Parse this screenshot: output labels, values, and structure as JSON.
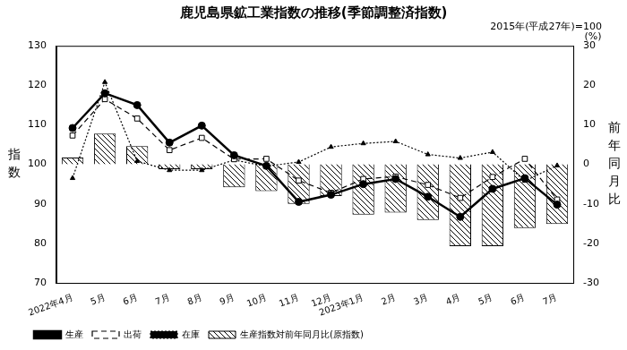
{
  "chart_data": {
    "type": "bar",
    "title": "鹿児島県鉱工業指数の推移(季節調整済指数)",
    "subtitle": "2015年(平成27年)=100",
    "ylabel": "指数",
    "y2label": "前年同月比",
    "annotations": [
      "(%)"
    ],
    "categories": [
      "2022年4月",
      "5月",
      "6月",
      "7月",
      "8月",
      "9月",
      "10月",
      "11月",
      "12月",
      "2023年1月",
      "2月",
      "3月",
      "4月",
      "5月",
      "6月",
      "7月"
    ],
    "series": [
      {
        "name": "生産指数対前年同月比(原指数)",
        "type": "bar",
        "axis": "y2",
        "color": "#000000",
        "values": [
          1.7,
          7.8,
          4.6,
          -1.2,
          -1.2,
          -5.8,
          -6.8,
          -10,
          -8,
          -12.7,
          -12.2,
          -14.1,
          -20.7,
          -20.7,
          -16.1,
          -15.1
        ]
      },
      {
        "name": "生産",
        "type": "line",
        "color": "#000000",
        "marker": "circle",
        "line_style": "solid",
        "values": [
          109.2,
          118,
          115,
          105.5,
          109.8,
          102.3,
          99.6,
          90.5,
          92.3,
          95,
          96.3,
          91.8,
          86.7,
          93.8,
          96.5,
          89.8
        ]
      },
      {
        "name": "出荷",
        "type": "line",
        "color": "#000000",
        "marker": "square",
        "line_style": "dashed",
        "values": [
          107.3,
          116.5,
          111.6,
          103.6,
          106.7,
          101.3,
          101.4,
          95.9,
          92.8,
          96.3,
          96.9,
          94.8,
          91.5,
          96.8,
          101.4,
          91.1
        ]
      },
      {
        "name": "在庫",
        "type": "line",
        "color": "#000000",
        "marker": "triangle",
        "line_style": "dotted",
        "values": [
          96.5,
          120.8,
          100.8,
          98.5,
          98.5,
          101.1,
          99.5,
          100.6,
          104.4,
          105.3,
          105.8,
          102.5,
          101.6,
          103.1,
          95.8,
          99.7
        ]
      }
    ],
    "ylim": [
      70,
      130
    ],
    "yticks": [
      70,
      80,
      90,
      100,
      110,
      120,
      130
    ],
    "y2lim": [
      -30,
      30
    ],
    "y2ticks": [
      -30,
      -20,
      -10,
      0,
      10,
      20,
      30
    ],
    "grid": false,
    "legend": "bottom"
  }
}
